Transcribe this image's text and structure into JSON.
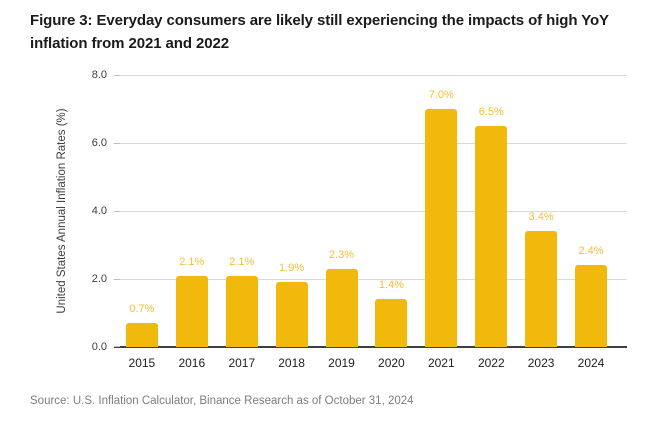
{
  "figure": {
    "title": "Figure 3: Everyday consumers are likely still experiencing the impacts of high YoY inflation from 2021 and 2022",
    "title_lines": [
      "Figure 3: Everyday consumers are likely still experiencing the impacts of high YoY",
      "inflation from 2021 and 2022"
    ],
    "source": "Source: U.S. Inflation Calculator, Binance Research as of October 31, 2024"
  },
  "chart_data": {
    "type": "bar",
    "categories": [
      "2015",
      "2016",
      "2017",
      "2018",
      "2019",
      "2020",
      "2021",
      "2022",
      "2023",
      "2024"
    ],
    "values": [
      0.7,
      2.1,
      2.1,
      1.9,
      2.3,
      1.4,
      7.0,
      6.5,
      3.4,
      2.4
    ],
    "value_labels": [
      "0.7%",
      "2.1%",
      "2.1%",
      "1.9%",
      "2.3%",
      "1.4%",
      "7.0%",
      "6.5%",
      "3.4%",
      "2.4%"
    ],
    "title": "",
    "xlabel": "",
    "ylabel": "United States Annual Inflation Rates (%)",
    "ylim": [
      0,
      8
    ],
    "yticks": [
      0.0,
      2.0,
      4.0,
      6.0,
      8.0
    ],
    "ytick_labels": [
      "0.0",
      "2.0",
      "4.0",
      "6.0",
      "8.0"
    ],
    "grid": true,
    "legend": false,
    "colors": {
      "bar": "#F0B90B",
      "bar_label": "#F2BE35",
      "gridline": "#D9D9D9",
      "tick_mark": "#BDBDBD",
      "axis_line": "#3C4043",
      "tick_label": "#3C4043",
      "year_label": "#202124",
      "title": "#1B1B1B",
      "source": "#7D7D7D",
      "background": "#FFFFFF"
    }
  }
}
